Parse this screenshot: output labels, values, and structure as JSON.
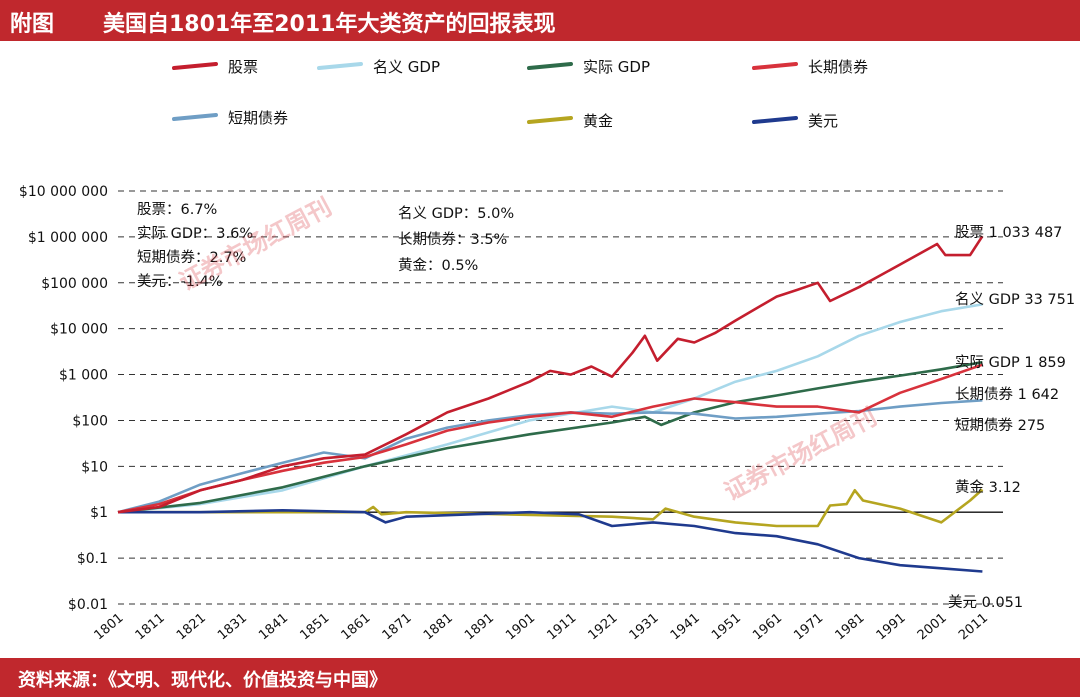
{
  "header": {
    "prefix": "附图",
    "title": "美国自1801年至2011年大类资产的回报表现"
  },
  "footer": {
    "source": "资料来源：《文明、现代化、价值投资与中国》"
  },
  "watermark": {
    "text": "证券市场红周刊"
  },
  "annotations": {
    "left": [
      "股票：6.7%",
      "实际 GDP：3.6%",
      "短期债券：2.7%",
      "美元：-1.4%"
    ],
    "right": [
      "名义 GDP：5.0%",
      "长期债券：3.5%",
      "黄金：0.5%"
    ]
  },
  "chart_data": {
    "type": "line",
    "title": "美国自1801年至2011年大类资产的回报表现",
    "xlabel": "",
    "ylabel": "",
    "y_scale": "log",
    "ylim": [
      0.01,
      10000000
    ],
    "xlim": [
      1801,
      2016
    ],
    "x_ticks": [
      1801,
      1811,
      1821,
      1831,
      1841,
      1851,
      1861,
      1871,
      1881,
      1891,
      1901,
      1911,
      1921,
      1931,
      1941,
      1951,
      1961,
      1971,
      1981,
      1991,
      2001,
      2011
    ],
    "y_ticks": [
      {
        "value": 10000000,
        "label": "$10 000 000"
      },
      {
        "value": 1000000,
        "label": "$1 000 000"
      },
      {
        "value": 100000,
        "label": "$100 000"
      },
      {
        "value": 10000,
        "label": "$10 000"
      },
      {
        "value": 1000,
        "label": "$1 000"
      },
      {
        "value": 100,
        "label": "$100"
      },
      {
        "value": 10,
        "label": "$10"
      },
      {
        "value": 1,
        "label": "$1"
      },
      {
        "value": 0.1,
        "label": "$0.1"
      },
      {
        "value": 0.01,
        "label": "$0.01"
      }
    ],
    "grid": "dashed horizontal",
    "legend_position": "top",
    "series": [
      {
        "name": "股票",
        "color": "#c41e2e",
        "end_label": "股票 1 033 487",
        "x": [
          1801,
          1811,
          1821,
          1831,
          1841,
          1851,
          1861,
          1871,
          1881,
          1891,
          1901,
          1906,
          1911,
          1916,
          1921,
          1926,
          1929,
          1932,
          1937,
          1941,
          1946,
          1951,
          1961,
          1966,
          1971,
          1974,
          1981,
          1991,
          2000,
          2002,
          2008,
          2011
        ],
        "y": [
          1,
          1.3,
          3,
          5,
          10,
          15,
          18,
          50,
          150,
          300,
          700,
          1200,
          1000,
          1500,
          900,
          3000,
          7000,
          2000,
          6000,
          5000,
          8000,
          15000,
          50000,
          70000,
          100000,
          40000,
          80000,
          250000,
          700000,
          400000,
          400000,
          1033487
        ]
      },
      {
        "name": "名义 GDP",
        "color": "#a8d8ea",
        "end_label": "名义 GDP 33 751",
        "x": [
          1801,
          1821,
          1841,
          1861,
          1881,
          1901,
          1921,
          1931,
          1941,
          1951,
          1961,
          1971,
          1981,
          1991,
          2001,
          2011
        ],
        "y": [
          1,
          1.5,
          3,
          10,
          30,
          100,
          200,
          150,
          300,
          700,
          1200,
          2500,
          7000,
          14000,
          24000,
          33751
        ]
      },
      {
        "name": "实际 GDP",
        "color": "#2e6b4a",
        "end_label": "实际 GDP 1 859",
        "x": [
          1801,
          1821,
          1841,
          1861,
          1881,
          1901,
          1921,
          1929,
          1933,
          1941,
          1951,
          1961,
          1971,
          1981,
          1991,
          2001,
          2011
        ],
        "y": [
          1,
          1.6,
          3.5,
          10,
          25,
          50,
          90,
          120,
          80,
          150,
          250,
          350,
          500,
          700,
          950,
          1300,
          1859
        ]
      },
      {
        "name": "长期债券",
        "color": "#d8323c",
        "end_label": "长期债券 1 642",
        "x": [
          1801,
          1811,
          1821,
          1831,
          1841,
          1851,
          1861,
          1871,
          1881,
          1891,
          1901,
          1911,
          1921,
          1931,
          1941,
          1951,
          1961,
          1971,
          1981,
          1991,
          2001,
          2011
        ],
        "y": [
          1,
          1.5,
          3,
          5,
          8,
          12,
          16,
          30,
          60,
          90,
          120,
          150,
          120,
          200,
          300,
          250,
          200,
          200,
          150,
          400,
          800,
          1642
        ]
      },
      {
        "name": "短期债券",
        "color": "#6f9ec5",
        "end_label": "短期债券 275",
        "x": [
          1801,
          1811,
          1821,
          1831,
          1841,
          1851,
          1861,
          1871,
          1881,
          1891,
          1901,
          1911,
          1921,
          1931,
          1941,
          1951,
          1961,
          1971,
          1981,
          1991,
          2001,
          2011
        ],
        "y": [
          1,
          1.7,
          4,
          7,
          12,
          20,
          15,
          40,
          70,
          100,
          130,
          150,
          140,
          150,
          140,
          110,
          120,
          140,
          160,
          200,
          240,
          275
        ]
      },
      {
        "name": "黄金",
        "color": "#b5a520",
        "end_label": "黄金 3.12",
        "x": [
          1801,
          1861,
          1863,
          1865,
          1871,
          1921,
          1931,
          1934,
          1941,
          1951,
          1961,
          1971,
          1974,
          1978,
          1980,
          1982,
          1986,
          1991,
          2001,
          2008,
          2011
        ],
        "y": [
          1,
          1,
          1.3,
          0.9,
          1,
          0.8,
          0.7,
          1.2,
          0.8,
          0.6,
          0.5,
          0.5,
          1.4,
          1.5,
          3,
          1.8,
          1.5,
          1.2,
          0.6,
          1.8,
          3.12
        ]
      },
      {
        "name": "美元",
        "color": "#1f3a8e",
        "end_label": "美元 0.051",
        "x": [
          1801,
          1821,
          1841,
          1861,
          1866,
          1871,
          1901,
          1913,
          1921,
          1931,
          1941,
          1951,
          1961,
          1971,
          1981,
          1991,
          2001,
          2011
        ],
        "y": [
          1,
          1,
          1.1,
          1,
          0.6,
          0.8,
          1,
          0.9,
          0.5,
          0.6,
          0.5,
          0.35,
          0.3,
          0.2,
          0.1,
          0.07,
          0.06,
          0.051
        ]
      }
    ]
  }
}
